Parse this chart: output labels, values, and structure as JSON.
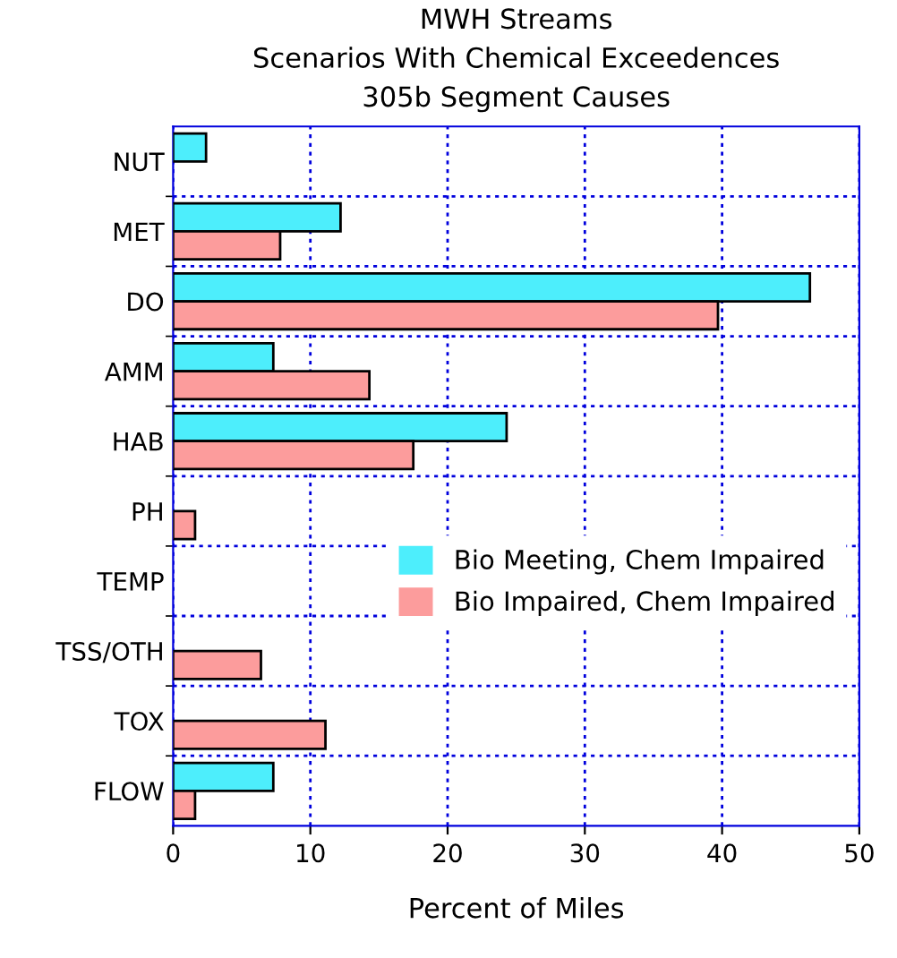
{
  "chart_data": {
    "type": "bar",
    "orientation": "horizontal",
    "title": "MWH Streams\nScenarios With Chemical Exceedences\n305b Segment Causes",
    "xlabel": "Percent of Miles",
    "categories": [
      "NUT",
      "MET",
      "DO",
      "AMM",
      "HAB",
      "PH",
      "TEMP",
      "TSS/OTH",
      "TOX",
      "FLOW"
    ],
    "series": [
      {
        "name": "Bio Meeting, Chem Impaired",
        "color": "#4deefc",
        "values": [
          2.4,
          12.2,
          46.4,
          7.3,
          24.3,
          null,
          null,
          null,
          null,
          7.3
        ]
      },
      {
        "name": "Bio Impaired, Chem Impaired",
        "color": "#fc9c9c",
        "values": [
          null,
          7.8,
          39.7,
          14.3,
          17.5,
          1.6,
          null,
          6.4,
          11.1,
          1.6
        ]
      }
    ],
    "xlim": [
      0,
      50
    ],
    "xticks": [
      0,
      10,
      20,
      30,
      40,
      50
    ],
    "grid": true,
    "legend": "center right"
  }
}
